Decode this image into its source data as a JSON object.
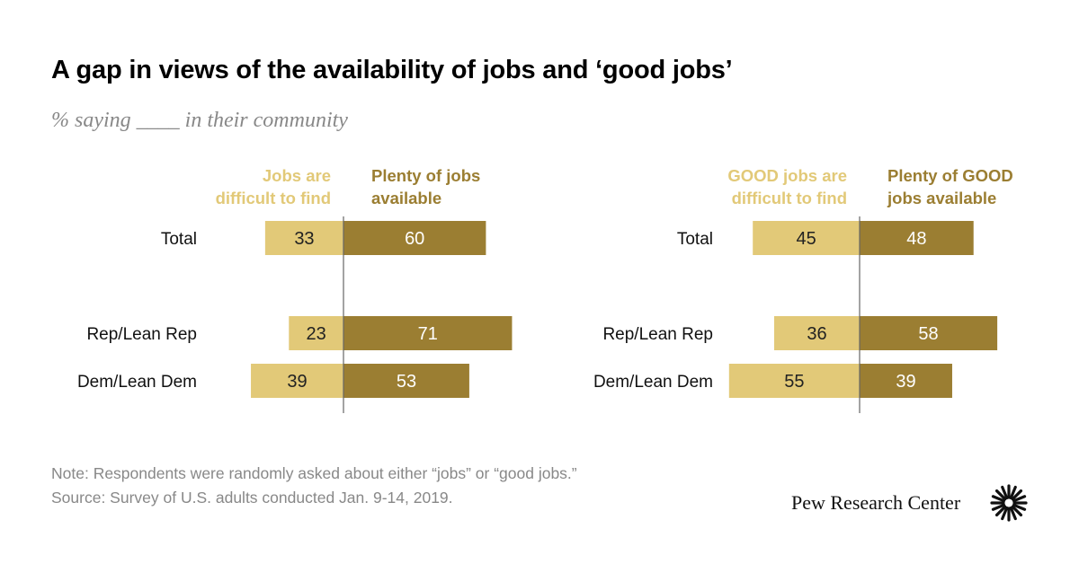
{
  "title": "A gap in views of the availability of jobs and ‘good jobs’",
  "subtitle": "% saying ____ in their community",
  "note": "Note: Respondents were randomly asked about either “jobs” or “good jobs.”",
  "source": "Source: Survey of U.S. adults conducted Jan. 9-14, 2019.",
  "logo_text": "Pew Research Center",
  "logo_icon": "pew-sunburst-icon",
  "colors": {
    "light": "#e2c978",
    "dark": "#9b7e32",
    "light_text": "#e2c978",
    "dark_text": "#9b7e32"
  },
  "chart_data": [
    {
      "type": "bar",
      "orientation": "horizontal-diverging",
      "categories": [
        "Total",
        "Rep/Lean Rep",
        "Dem/Lean Dem"
      ],
      "series": [
        {
          "name": "Jobs are difficult to find",
          "name_lines": [
            "Jobs are",
            "difficult to find"
          ],
          "values": [
            33,
            23,
            39
          ],
          "side": "left"
        },
        {
          "name": "Plenty of jobs available",
          "name_lines": [
            "Plenty of jobs",
            "available"
          ],
          "values": [
            60,
            71,
            53
          ],
          "side": "right"
        }
      ],
      "unit": "%"
    },
    {
      "type": "bar",
      "orientation": "horizontal-diverging",
      "categories": [
        "Total",
        "Rep/Lean Rep",
        "Dem/Lean Dem"
      ],
      "series": [
        {
          "name": "GOOD jobs are difficult to find",
          "name_lines": [
            "GOOD jobs are",
            "difficult to find"
          ],
          "values": [
            45,
            36,
            55
          ],
          "side": "left"
        },
        {
          "name": "Plenty of GOOD jobs available",
          "name_lines": [
            "Plenty of GOOD",
            "jobs available"
          ],
          "values": [
            48,
            58,
            39
          ],
          "side": "right"
        }
      ],
      "unit": "%"
    }
  ]
}
